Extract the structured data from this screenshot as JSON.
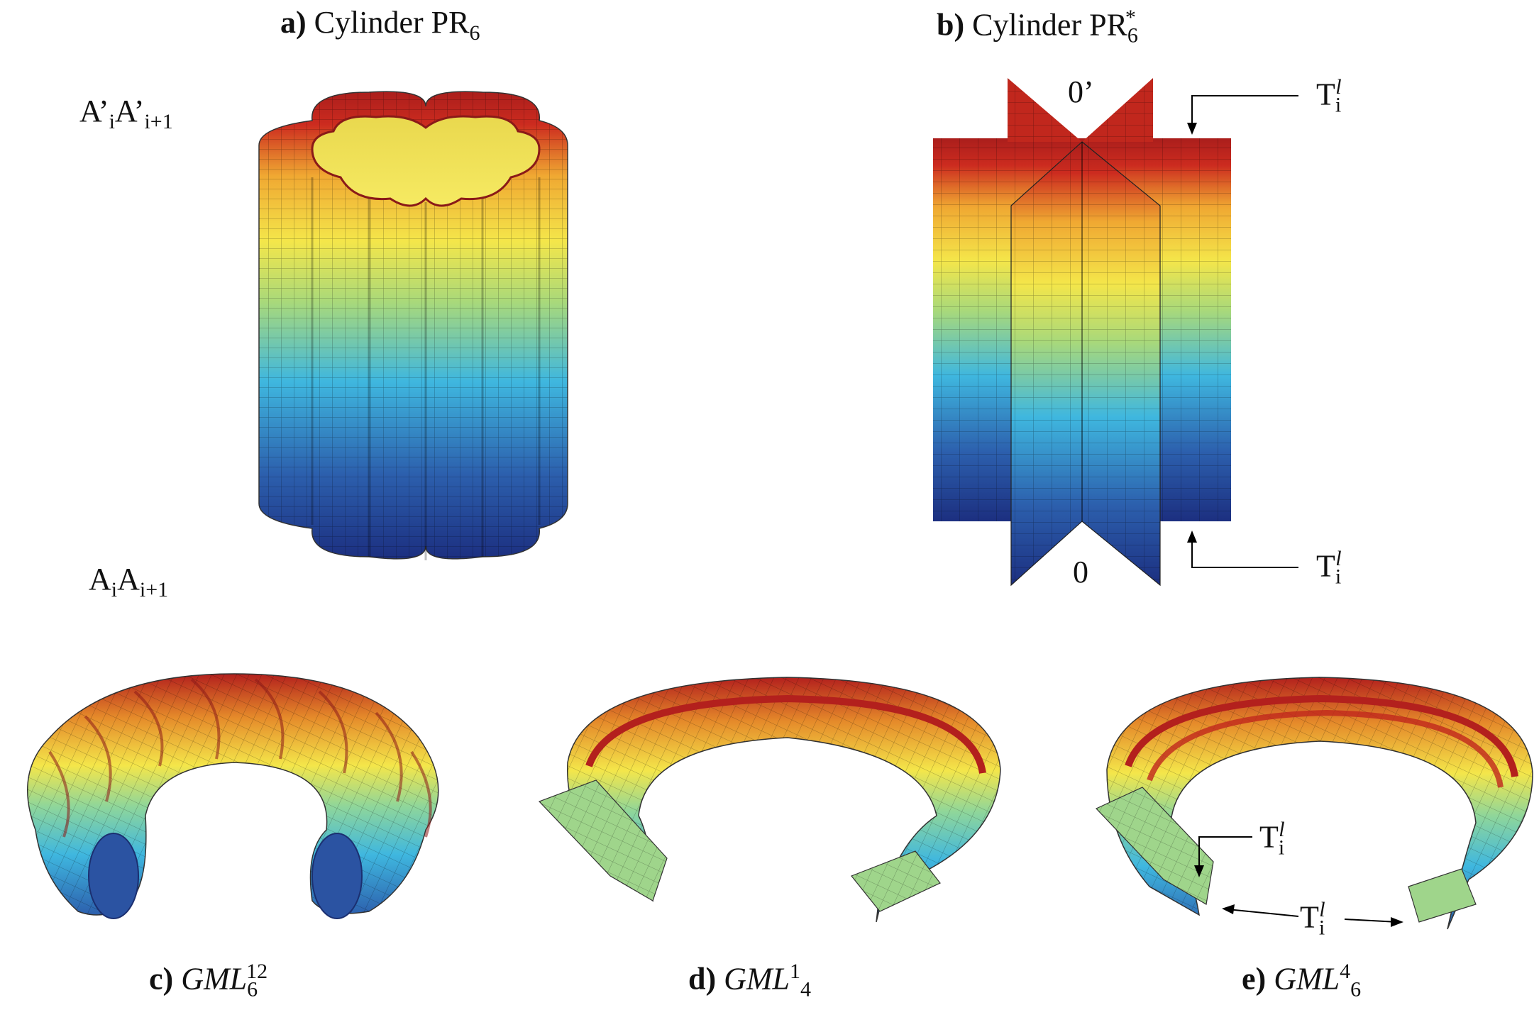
{
  "panels": {
    "a": {
      "letter": "a)",
      "text": "Cylinder PR",
      "sub": "6"
    },
    "b": {
      "letter": "b)",
      "text": "Cylinder PR",
      "sub": "6",
      "sup": "*"
    },
    "c": {
      "letter": "c)",
      "text": "GML",
      "sub": "6",
      "sup": "12"
    },
    "d": {
      "letter": "d)",
      "text": "GML",
      "sup": "1",
      "sub": "4"
    },
    "e": {
      "letter": "e)",
      "text": "GML",
      "sup": "4",
      "sub": "6"
    }
  },
  "annotations": {
    "top_edge": {
      "a": "A’",
      "i": "i",
      "b": "A’",
      "ip1": "i+1"
    },
    "bottom_edge": {
      "a": "A",
      "i": "i",
      "b": "A",
      "ip1": "i+1"
    },
    "vertex_top": "0’",
    "vertex_bottom": "0",
    "t_label": {
      "base": "T",
      "sub": "i",
      "sup": "l"
    }
  },
  "colormap": [
    "#1f3e93",
    "#2f6fb6",
    "#3fb6df",
    "#8fd69a",
    "#f2e84a",
    "#f1b132",
    "#c8281f",
    "#b3201d"
  ]
}
